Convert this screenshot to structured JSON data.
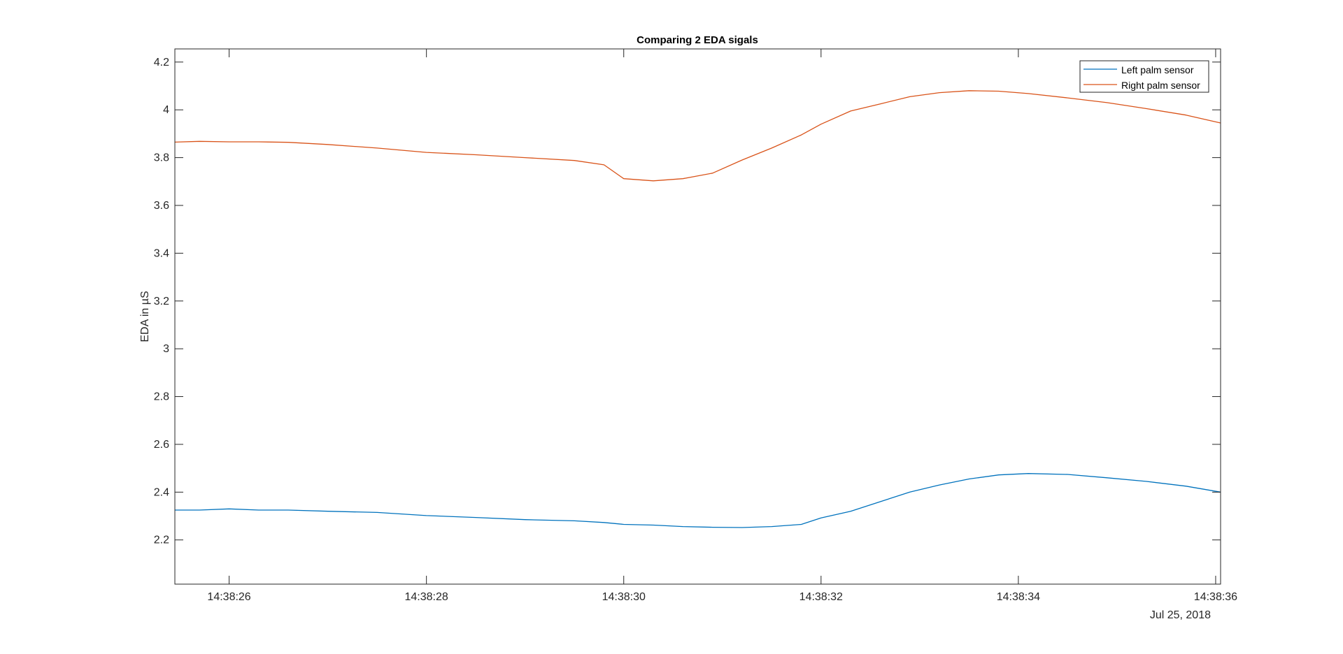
{
  "chart_data": {
    "type": "line",
    "title": "Comparing 2 EDA sigals",
    "xlabel": "",
    "ylabel": "EDA in µS",
    "x_date_label": "Jul 25, 2018",
    "x_tick_labels": [
      "14:38:26",
      "14:38:28",
      "14:38:30",
      "14:38:32",
      "14:38:34",
      "14:38:36"
    ],
    "xlim": [
      "14:38:25.45",
      "14:38:36.05"
    ],
    "y_ticks": [
      2.2,
      2.4,
      2.6,
      2.8,
      3,
      3.2,
      3.4,
      3.6,
      3.8,
      4,
      4.2
    ],
    "ylim": [
      2.015,
      4.255
    ],
    "grid": false,
    "legend_position": "top-right",
    "x": [
      "14:38:25.45",
      "14:38:25.7",
      "14:38:26.0",
      "14:38:26.3",
      "14:38:26.6",
      "14:38:27.0",
      "14:38:27.5",
      "14:38:28.0",
      "14:38:28.5",
      "14:38:29.0",
      "14:38:29.5",
      "14:38:29.8",
      "14:38:30.0",
      "14:38:30.3",
      "14:38:30.6",
      "14:38:30.9",
      "14:38:31.2",
      "14:38:31.5",
      "14:38:31.8",
      "14:38:32.0",
      "14:38:32.3",
      "14:38:32.6",
      "14:38:32.9",
      "14:38:33.2",
      "14:38:33.5",
      "14:38:33.8",
      "14:38:34.1",
      "14:38:34.5",
      "14:38:34.9",
      "14:38:35.3",
      "14:38:35.7",
      "14:38:36.05"
    ],
    "series": [
      {
        "name": "Left palm sensor",
        "color": "#0072BD",
        "values": [
          2.325,
          2.325,
          2.33,
          2.325,
          2.325,
          2.32,
          2.315,
          2.302,
          2.294,
          2.285,
          2.28,
          2.273,
          2.265,
          2.262,
          2.256,
          2.253,
          2.252,
          2.256,
          2.265,
          2.292,
          2.32,
          2.36,
          2.4,
          2.43,
          2.455,
          2.472,
          2.478,
          2.474,
          2.46,
          2.445,
          2.425,
          2.4
        ]
      },
      {
        "name": "Right palm sensor",
        "color": "#D95319",
        "values": [
          3.865,
          3.868,
          3.866,
          3.866,
          3.864,
          3.855,
          3.84,
          3.822,
          3.812,
          3.8,
          3.788,
          3.77,
          3.712,
          3.703,
          3.712,
          3.735,
          3.79,
          3.84,
          3.895,
          3.94,
          3.995,
          4.025,
          4.055,
          4.072,
          4.08,
          4.078,
          4.068,
          4.05,
          4.03,
          4.005,
          3.978,
          3.945
        ]
      }
    ]
  }
}
